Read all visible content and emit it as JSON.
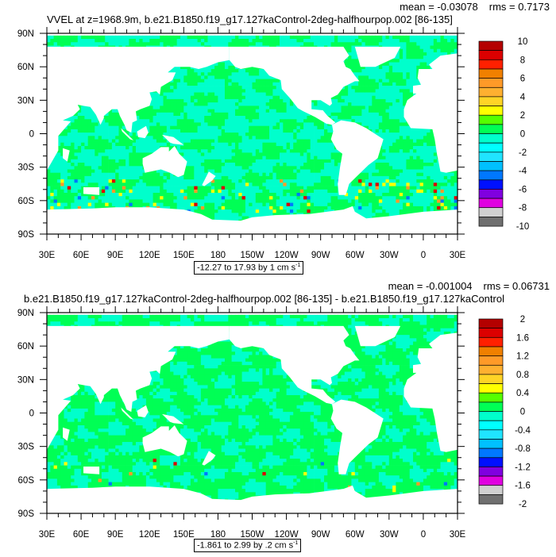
{
  "chart_data": [
    {
      "type": "heatmap",
      "title": "VVEL at z=1968.9m, b.e21.B1850.f19_g17.127kaControl-2deg-halfhourpop.002 [86-135]",
      "stats": {
        "mean": "mean = -0.03078",
        "rms": "rms = 0.7173"
      },
      "subtitle": "-12.27 to 17.93 by 1 cm s",
      "subtitle_sup": "-1",
      "lon_ticks": [
        "30E",
        "60E",
        "90E",
        "120E",
        "150E",
        "180",
        "150W",
        "120W",
        "90W",
        "60W",
        "30W",
        "0",
        "30E"
      ],
      "lat_ticks": [
        "90N",
        "60N",
        "30N",
        "0",
        "30S",
        "60S",
        "90S"
      ],
      "xlim": [
        30,
        390
      ],
      "ylim": [
        -90,
        90
      ],
      "colorbar": {
        "levels": [
          10,
          9,
          8,
          7,
          6,
          5,
          4,
          3,
          2,
          1,
          0,
          -1,
          -2,
          -3,
          -4,
          -5,
          -6,
          -7,
          -8,
          -9,
          -10
        ],
        "labels": [
          "10",
          "8",
          "6",
          "4",
          "2",
          "0",
          "-2",
          "-4",
          "-6",
          "-8",
          "-10"
        ]
      },
      "dominant_range": [
        -1,
        1
      ],
      "hotspot_intensity": 1.0
    },
    {
      "type": "heatmap",
      "title": "b.e21.B1850.f19_g17.127kaControl-2deg-halfhourpop.002 [86-135] - b.e21.B1850.f19_g17.127kaControl",
      "stats": {
        "mean": "mean = -0.001004",
        "rms": "rms = 0.06731"
      },
      "subtitle": "-1.861 to 2.99 by .2 cm s",
      "subtitle_sup": "-1",
      "lon_ticks": [
        "30E",
        "60E",
        "90E",
        "120E",
        "150E",
        "180",
        "150W",
        "120W",
        "90W",
        "60W",
        "30W",
        "0",
        "30E"
      ],
      "lat_ticks": [
        "90N",
        "60N",
        "30N",
        "0",
        "30S",
        "60S",
        "90S"
      ],
      "xlim": [
        30,
        390
      ],
      "ylim": [
        -90,
        90
      ],
      "colorbar": {
        "levels": [
          2,
          1.8,
          1.6,
          1.4,
          1.2,
          1,
          0.8,
          0.6,
          0.4,
          0.2,
          0,
          -0.2,
          -0.4,
          -0.6,
          -0.8,
          -1,
          -1.2,
          -1.4,
          -1.6,
          -1.8,
          -2
        ],
        "labels": [
          "2",
          "1.6",
          "1.2",
          "0.8",
          "0.4",
          "0",
          "-0.4",
          "-0.8",
          "-1.2",
          "-1.6",
          "-2"
        ]
      },
      "dominant_range": [
        -0.2,
        0.2
      ],
      "hotspot_intensity": 0.3
    }
  ],
  "colors": [
    "#b40000",
    "#dc0000",
    "#ff2000",
    "#f08000",
    "#ff9a28",
    "#ffb030",
    "#ffd426",
    "#ffff00",
    "#55ff00",
    "#00ff55",
    "#00ffcc",
    "#00ffff",
    "#20e4ff",
    "#00c0ff",
    "#0078ff",
    "#0010ff",
    "#8000e0",
    "#e000e0",
    "#d0d0d0",
    "#707070"
  ]
}
